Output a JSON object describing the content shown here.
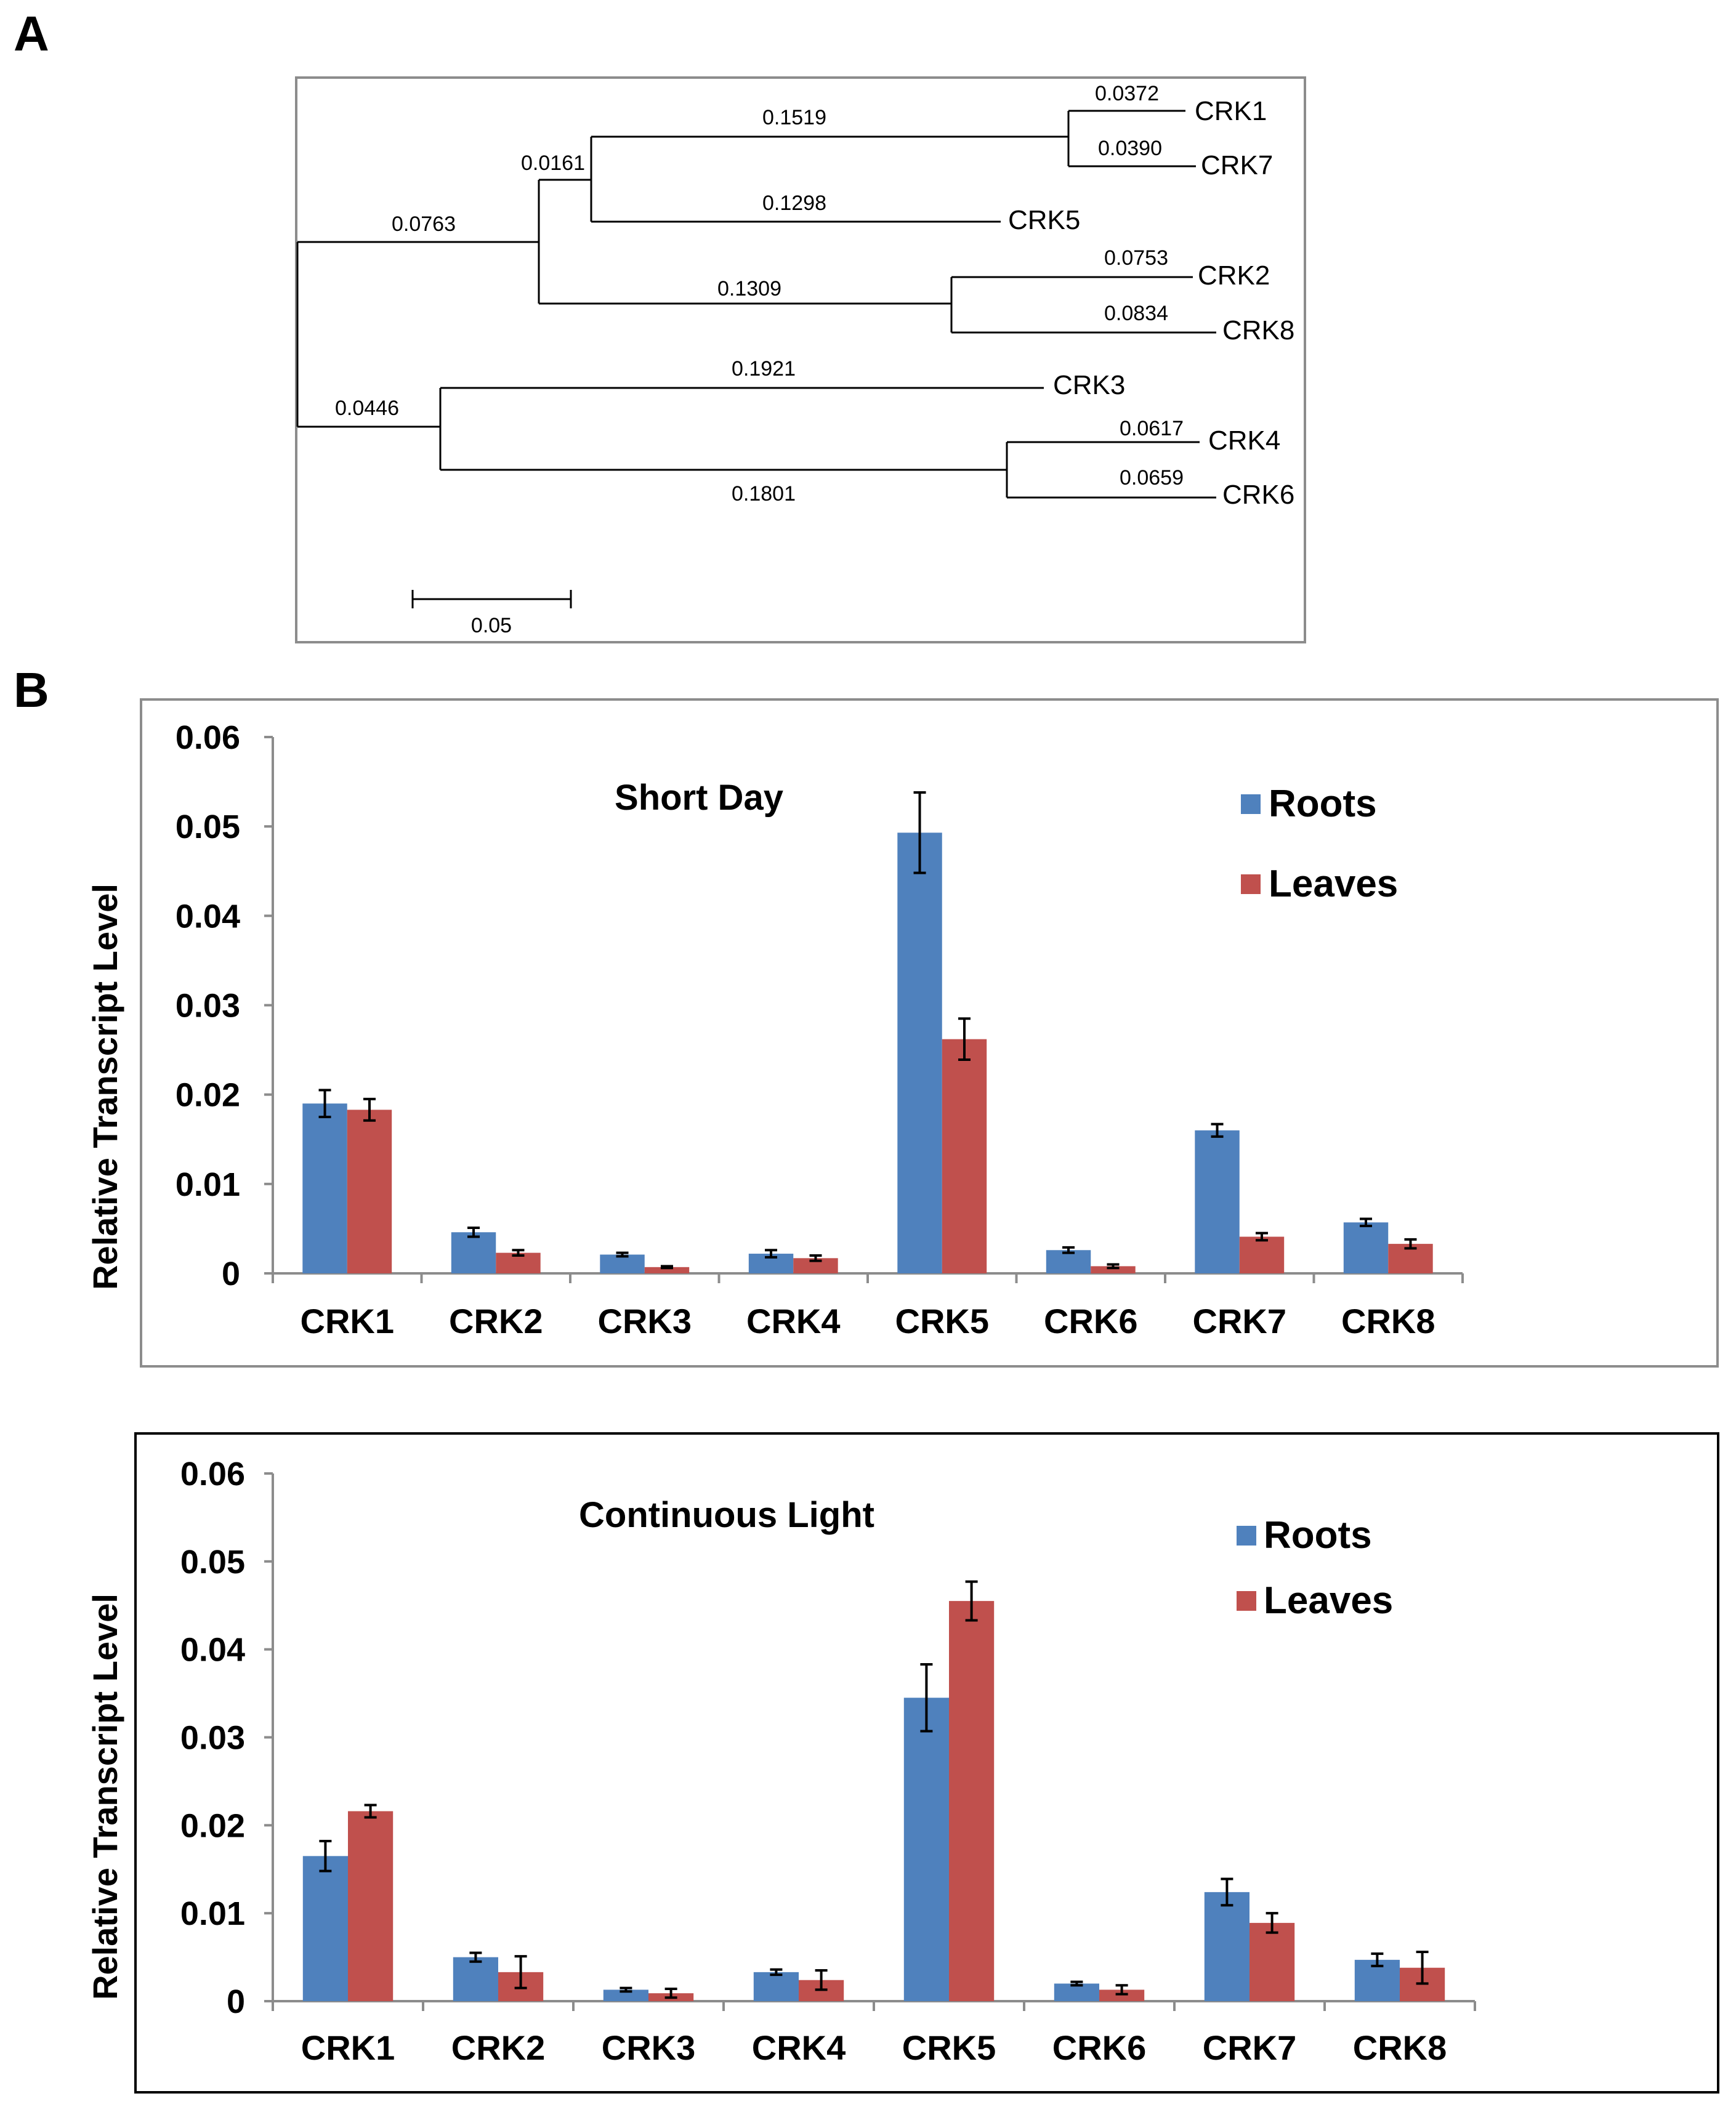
{
  "panel_a": {
    "label": "A",
    "leaves": [
      "CRK1",
      "CRK7",
      "CRK5",
      "CRK2",
      "CRK8",
      "CRK3",
      "CRK4",
      "CRK6"
    ],
    "branch_lengths": {
      "crk1": "0.0372",
      "crk7": "0.0390",
      "crk1_crk7_clade": "0.1519",
      "crk5": "0.1298",
      "crk157_clade": "0.0161",
      "crk2": "0.0753",
      "crk8": "0.0834",
      "crk2_crk8_clade": "0.1309",
      "upper_clade": "0.0763",
      "crk3": "0.1921",
      "crk4": "0.0617",
      "crk6": "0.0659",
      "crk4_crk6_clade": "0.1801",
      "lower_clade": "0.0446"
    },
    "scale_bar": "0.05"
  },
  "panel_b": {
    "label": "B"
  },
  "chart_data": [
    {
      "type": "bar",
      "title": "Short Day",
      "ylabel": "Relative Transcript  Level",
      "xlabel": "",
      "categories": [
        "CRK1",
        "CRK2",
        "CRK3",
        "CRK4",
        "CRK5",
        "CRK6",
        "CRK7",
        "CRK8"
      ],
      "yticks": [
        "0",
        "0.01",
        "0.02",
        "0.03",
        "0.04",
        "0.05",
        "0.06"
      ],
      "ylim": [
        0,
        0.06
      ],
      "legend_position": "top-right",
      "series": [
        {
          "name": "Roots",
          "color": "#4F81BD",
          "values": [
            0.019,
            0.0046,
            0.0021,
            0.0022,
            0.0493,
            0.0026,
            0.016,
            0.0057
          ],
          "errors": [
            0.0015,
            0.0005,
            0.0002,
            0.0004,
            0.0045,
            0.0003,
            0.0007,
            0.0004
          ]
        },
        {
          "name": "Leaves",
          "color": "#C0504D",
          "values": [
            0.0183,
            0.0023,
            0.0007,
            0.0017,
            0.0262,
            0.0008,
            0.0041,
            0.0033
          ],
          "errors": [
            0.0012,
            0.0003,
            0.0001,
            0.0003,
            0.0023,
            0.0002,
            0.0004,
            0.0005
          ]
        }
      ]
    },
    {
      "type": "bar",
      "title": "Continuous  Light",
      "ylabel": "Relative Transcript  Level",
      "xlabel": "",
      "categories": [
        "CRK1",
        "CRK2",
        "CRK3",
        "CRK4",
        "CRK5",
        "CRK6",
        "CRK7",
        "CRK8"
      ],
      "yticks": [
        "0",
        "0.01",
        "0.02",
        "0.03",
        "0.04",
        "0.05",
        "0.06"
      ],
      "ylim": [
        0,
        0.06
      ],
      "legend_position": "top-right",
      "series": [
        {
          "name": "Roots",
          "color": "#4F81BD",
          "values": [
            0.0165,
            0.005,
            0.0013,
            0.0033,
            0.0345,
            0.002,
            0.0124,
            0.0047
          ],
          "errors": [
            0.0017,
            0.0005,
            0.0002,
            0.0003,
            0.0038,
            0.0002,
            0.0015,
            0.0007
          ]
        },
        {
          "name": "Leaves",
          "color": "#C0504D",
          "values": [
            0.0216,
            0.0033,
            0.0009,
            0.0024,
            0.0455,
            0.0013,
            0.0089,
            0.0038
          ],
          "errors": [
            0.0007,
            0.0018,
            0.0005,
            0.0011,
            0.0022,
            0.0005,
            0.0011,
            0.0018
          ]
        }
      ]
    }
  ]
}
